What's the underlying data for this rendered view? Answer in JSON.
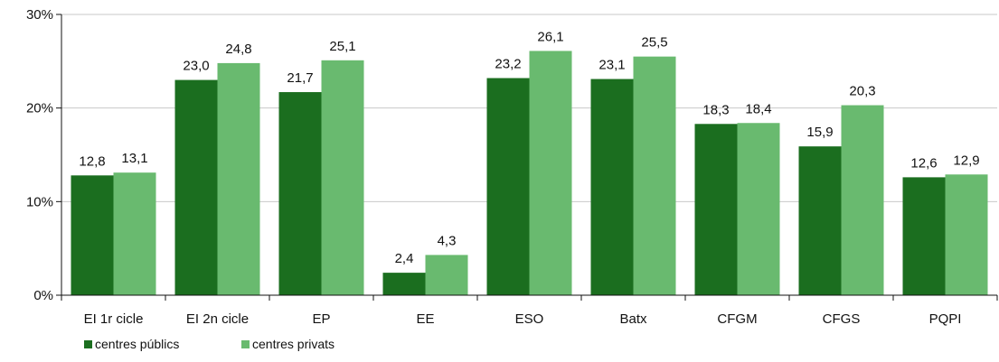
{
  "chart_data": {
    "type": "bar",
    "categories": [
      "EI 1r cicle",
      "EI 2n cicle",
      "EP",
      "EE",
      "ESO",
      "Batx",
      "CFGM",
      "CFGS",
      "PQPI"
    ],
    "series": [
      {
        "name": "centres públics",
        "color": "#1b6e1f",
        "values": [
          12.8,
          23.0,
          21.7,
          2.4,
          23.2,
          23.1,
          18.3,
          15.9,
          12.6
        ],
        "labels": [
          "12,8",
          "23,0",
          "21,7",
          "2,4",
          "23,2",
          "23,1",
          "18,3",
          "15,9",
          "12,6"
        ]
      },
      {
        "name": "centres privats",
        "color": "#69ba6f",
        "values": [
          13.1,
          24.8,
          25.1,
          4.3,
          26.1,
          25.5,
          18.4,
          20.3,
          12.9
        ],
        "labels": [
          "13,1",
          "24,8",
          "25,1",
          "4,3",
          "26,1",
          "25,5",
          "18,4",
          "20,3",
          "12,9"
        ]
      }
    ],
    "y_ticks": [
      {
        "value": 0,
        "label": "0%"
      },
      {
        "value": 10,
        "label": "10%"
      },
      {
        "value": 20,
        "label": "20%"
      },
      {
        "value": 30,
        "label": "30%"
      }
    ],
    "ylim": [
      0,
      30
    ],
    "grid": true,
    "legend_position": "bottom-left",
    "gridline_color": "#c8c8c8",
    "axis_color": "#111111"
  }
}
